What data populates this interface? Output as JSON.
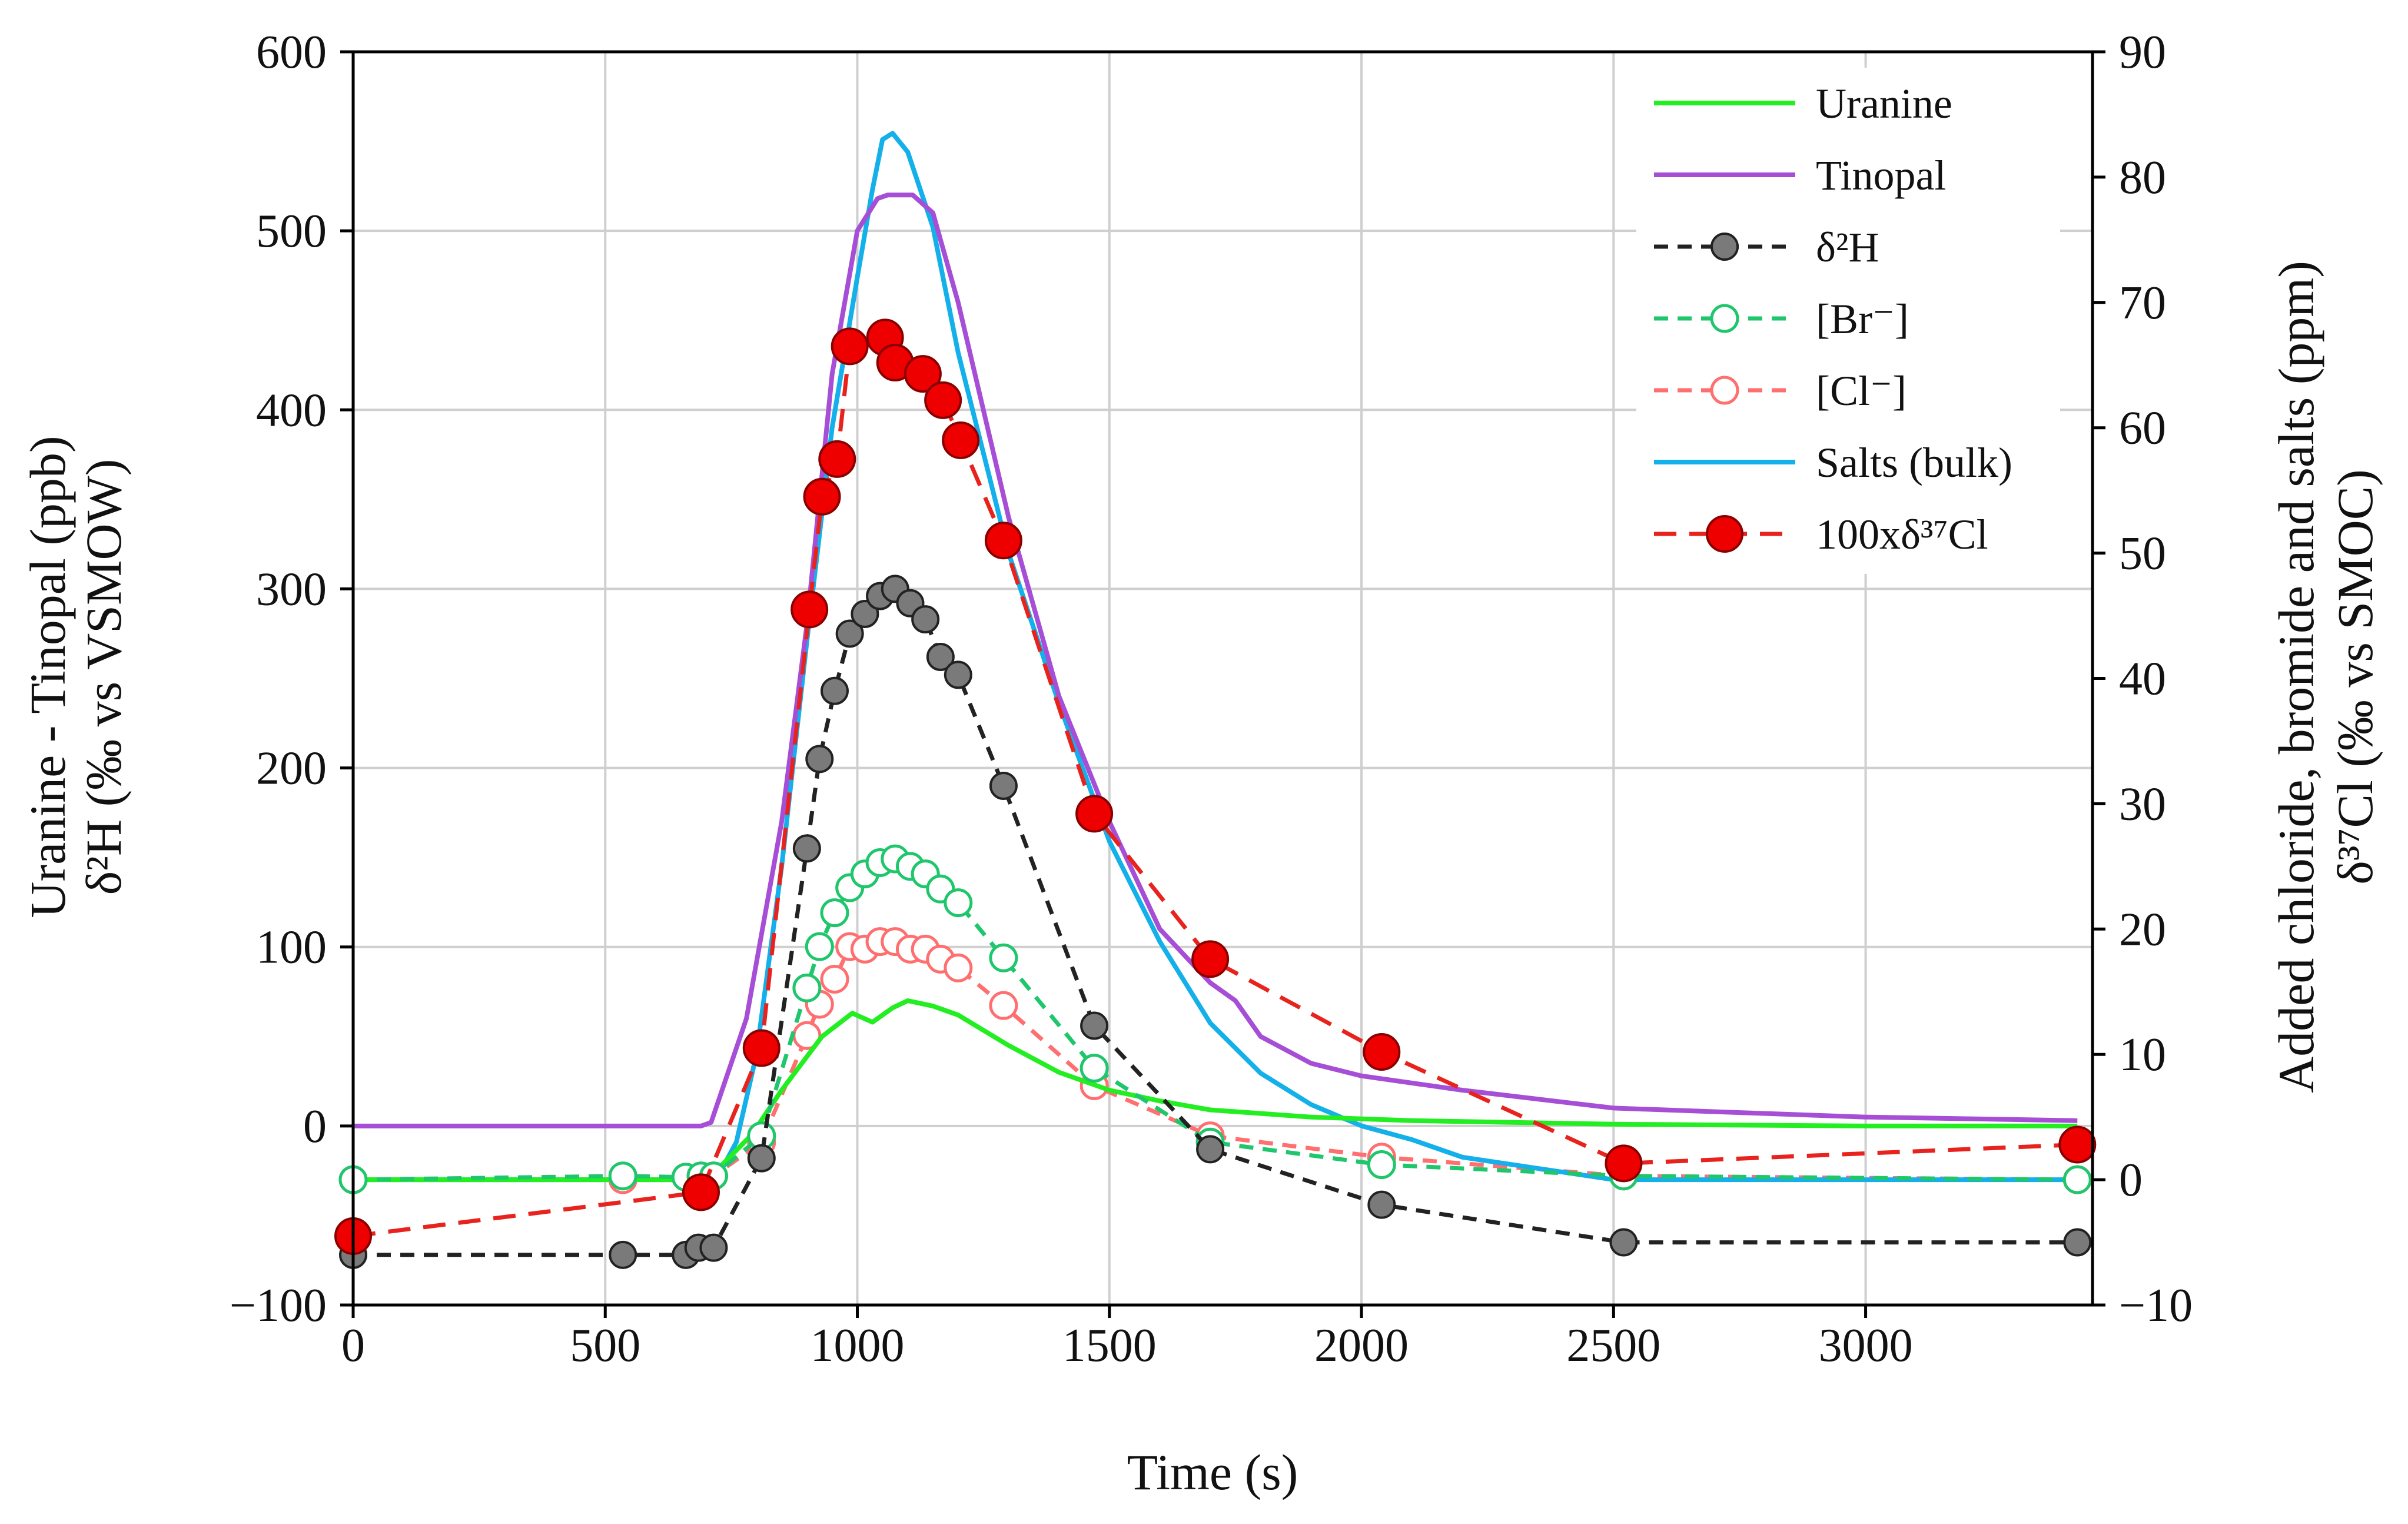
{
  "chart_data": {
    "type": "line",
    "xlabel": "Time (s)",
    "ylabel_left": [
      "Uranine - Tinopal (ppb)",
      "δ²H (‰ vs VSMOW)"
    ],
    "ylabel_right": [
      "Added chloride, bromide and salts (ppm)",
      "δ³⁷Cl (‰ vs SMOC)"
    ],
    "xlim": [
      0,
      3450
    ],
    "ylim_left": [
      -100,
      600
    ],
    "ylim_right": [
      -10,
      90
    ],
    "grid": true,
    "legend_position": "top-right",
    "x_ticks": [
      0,
      500,
      1000,
      1500,
      2000,
      2500,
      3000
    ],
    "x_tick_labels": [
      "0",
      "500",
      "1000",
      "1500",
      "2000",
      "2500",
      "3000"
    ],
    "y_left_ticks": [
      -100,
      0,
      100,
      200,
      300,
      400,
      500,
      600
    ],
    "y_left_tick_labels": [
      "−100",
      "0",
      "100",
      "200",
      "300",
      "400",
      "500",
      "600"
    ],
    "y_right_ticks": [
      -10,
      0,
      10,
      20,
      30,
      40,
      50,
      60,
      70,
      80,
      90
    ],
    "y_right_tick_labels": [
      "−10",
      "0",
      "10",
      "20",
      "30",
      "40",
      "50",
      "60",
      "70",
      "80",
      "90"
    ],
    "series": [
      {
        "name": "Uranine",
        "axis": "left",
        "color": "#22ee22",
        "style": "solid",
        "marker": "none",
        "x": [
          0,
          650,
          720,
          790,
          850,
          930,
          990,
          1030,
          1070,
          1100,
          1150,
          1200,
          1300,
          1400,
          1500,
          1600,
          1700,
          1900,
          2100,
          2500,
          3000,
          3420
        ],
        "y": [
          -30,
          -30,
          -25,
          -5,
          20,
          50,
          63,
          58,
          66,
          70,
          67,
          62,
          45,
          30,
          20,
          14,
          9,
          5,
          3,
          1,
          0,
          0
        ]
      },
      {
        "name": "Tinopal",
        "axis": "left",
        "color": "#a64fd6",
        "style": "solid",
        "marker": "none",
        "x": [
          0,
          690,
          710,
          780,
          850,
          900,
          950,
          1000,
          1040,
          1060,
          1110,
          1150,
          1200,
          1300,
          1400,
          1500,
          1600,
          1700,
          1750,
          1800,
          1900,
          2000,
          2200,
          2500,
          3000,
          3420
        ],
        "y": [
          0,
          0,
          2,
          60,
          170,
          280,
          420,
          500,
          518,
          520,
          520,
          510,
          460,
          340,
          240,
          170,
          110,
          80,
          70,
          50,
          35,
          28,
          20,
          10,
          5,
          3
        ]
      },
      {
        "name": "δ²H",
        "axis": "left",
        "color": "#222222",
        "style": "dashed",
        "marker": "filled-circle",
        "marker_color": "#7a7a7a",
        "x": [
          0,
          535,
          660,
          685,
          715,
          810,
          900,
          925,
          955,
          985,
          1015,
          1045,
          1075,
          1105,
          1135,
          1165,
          1200,
          1290,
          1470,
          1700,
          2040,
          2520,
          3420
        ],
        "y": [
          -72,
          -72,
          -72,
          -68,
          -68,
          -18,
          155,
          205,
          243,
          275,
          286,
          296,
          300,
          292,
          283,
          262,
          252,
          190,
          56,
          -13,
          -44,
          -65,
          -65
        ]
      },
      {
        "name": "[Br⁻]",
        "axis": "right",
        "color": "#1fc66c",
        "style": "dashed",
        "marker": "open-circle",
        "x": [
          0,
          535,
          660,
          690,
          715,
          810,
          900,
          925,
          955,
          985,
          1015,
          1045,
          1075,
          1105,
          1135,
          1165,
          1200,
          1290,
          1470,
          1700,
          2040,
          2520,
          3420
        ],
        "y": [
          0,
          0.3,
          0.2,
          0.3,
          0.3,
          3.5,
          15.3,
          18.6,
          21.3,
          23.3,
          24.4,
          25.3,
          25.6,
          25,
          24.4,
          23.2,
          22.1,
          17.7,
          8.9,
          3,
          1.2,
          0.3,
          0
        ]
      },
      {
        "name": "[Cl⁻]",
        "axis": "right",
        "color": "#ff6f6f",
        "style": "dashed",
        "marker": "open-circle",
        "x": [
          0,
          535,
          660,
          690,
          715,
          810,
          900,
          925,
          955,
          985,
          1015,
          1045,
          1075,
          1105,
          1135,
          1165,
          1200,
          1290,
          1470,
          1700,
          2040,
          2520,
          3420
        ],
        "y": [
          0,
          0,
          0.2,
          0.2,
          0.3,
          3,
          11.5,
          14,
          16,
          18.6,
          18.4,
          19,
          19,
          18.4,
          18.4,
          17.6,
          16.9,
          13.9,
          7.5,
          3.5,
          1.8,
          0.3,
          0
        ]
      },
      {
        "name": "Salts (bulk)",
        "axis": "right",
        "color": "#14b0ea",
        "style": "solid",
        "marker": "none",
        "x": [
          0,
          650,
          720,
          760,
          800,
          850,
          900,
          950,
          1000,
          1030,
          1050,
          1070,
          1100,
          1150,
          1200,
          1300,
          1400,
          1500,
          1600,
          1700,
          1800,
          1900,
          2000,
          2100,
          2200,
          2300,
          2400,
          2500,
          3000,
          3420
        ],
        "y": [
          0,
          0,
          0,
          3,
          10,
          25,
          43,
          60,
          72,
          79,
          83,
          83.5,
          82,
          76,
          66,
          50,
          38,
          27,
          19,
          12.5,
          8.5,
          6,
          4.3,
          3.2,
          1.8,
          1.2,
          0.6,
          0,
          0,
          0
        ]
      },
      {
        "name": "100xδ³⁷Cl",
        "axis": "right",
        "color": "#e8231d",
        "style": "dashed",
        "marker": "filled-circle",
        "marker_color": "#ee0000",
        "x": [
          0,
          690,
          810,
          905,
          930,
          960,
          985,
          1055,
          1075,
          1130,
          1170,
          1205,
          1290,
          1470,
          1700,
          2040,
          2520,
          3420
        ],
        "y": [
          -4.5,
          -1,
          10.5,
          45.5,
          54.5,
          57.5,
          66.5,
          67.2,
          65.2,
          64.3,
          62.2,
          59,
          51,
          29.2,
          17.6,
          10.2,
          1.3,
          2.8
        ]
      }
    ]
  }
}
